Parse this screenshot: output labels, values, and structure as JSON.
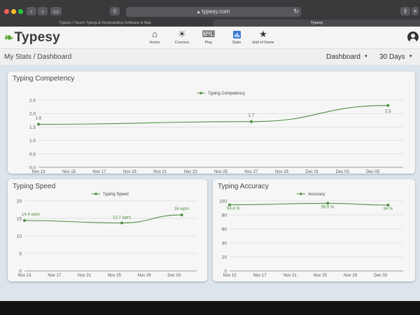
{
  "browser": {
    "address": "typesy.com",
    "tabs": [
      {
        "title": "Typesy | Touch Typing & Keyboarding Software & App"
      },
      {
        "title": "Typesy"
      }
    ]
  },
  "app": {
    "logo": "Typesy",
    "nav": [
      {
        "label": "Home",
        "icon": "home-icon"
      },
      {
        "label": "Courses",
        "icon": "lightbulb-icon"
      },
      {
        "label": "Play",
        "icon": "keyboard-icon"
      },
      {
        "label": "Stats",
        "icon": "bar-chart-icon"
      },
      {
        "label": "Hall of Fame",
        "icon": "star-icon"
      }
    ]
  },
  "subheader": {
    "breadcrumb": "My Stats / Dashboard",
    "view_select": "Dashboard",
    "range_select": "30 Days"
  },
  "colors": {
    "line": "#4f8f43",
    "grid": "#dcdcdc",
    "card_bg": "#f6f6f6",
    "dashboard_bg": "#dde5ec",
    "accent": "#3b7bd6"
  },
  "chart_data": [
    {
      "type": "line",
      "title": "Typing Competency",
      "series": [
        {
          "name": "Typing Competency",
          "points": [
            [
              0,
              1.6
            ],
            [
              14,
              1.7
            ],
            [
              23,
              2.3
            ]
          ]
        }
      ],
      "point_labels": [
        "1.6",
        "1.7",
        "2.3"
      ],
      "x_tick_labels": [
        "Nov 13",
        "Nov 15",
        "Nov 17",
        "Nov 19",
        "Nov 21",
        "Nov 23",
        "Nov 25",
        "Nov 27",
        "Nov 29",
        "Dec 01",
        "Dec 03",
        "Dec 05"
      ],
      "y_tick_labels": [
        "2.5",
        "2.0",
        "1.5",
        "1.0",
        "0.5",
        "0.0"
      ],
      "ylim": [
        0,
        2.5
      ],
      "grid": true,
      "legend": "top-center"
    },
    {
      "type": "line",
      "title": "Typing Speed",
      "series": [
        {
          "name": "Typing Speed",
          "points": [
            [
              0,
              14.4
            ],
            [
              13,
              13.7
            ],
            [
              21,
              16
            ]
          ]
        }
      ],
      "point_labels": [
        "14.4 wpm",
        "13.7 wpm",
        "16 wpm"
      ],
      "x_tick_labels": [
        "Nov 13",
        "Nov 17",
        "Nov 21",
        "Nov 25",
        "Nov 29",
        "Dec 03"
      ],
      "y_tick_labels": [
        "20",
        "15",
        "10",
        "5",
        "0"
      ],
      "ylim": [
        0,
        20
      ],
      "grid": true,
      "legend": "top-center"
    },
    {
      "type": "line",
      "title": "Typing Accuracy",
      "series": [
        {
          "name": "Accuracy",
          "points": [
            [
              0,
              94.4
            ],
            [
              13,
              96.6
            ],
            [
              21,
              94
            ]
          ]
        }
      ],
      "point_labels": [
        "94.4 %",
        "96.6 %",
        "94 %"
      ],
      "x_tick_labels": [
        "Nov 13",
        "Nov 17",
        "Nov 21",
        "Nov 25",
        "Nov 29",
        "Dec 03"
      ],
      "y_tick_labels": [
        "100",
        "80",
        "60",
        "40",
        "20",
        "0"
      ],
      "ylim": [
        0,
        100
      ],
      "grid": true,
      "legend": "top-center"
    }
  ]
}
